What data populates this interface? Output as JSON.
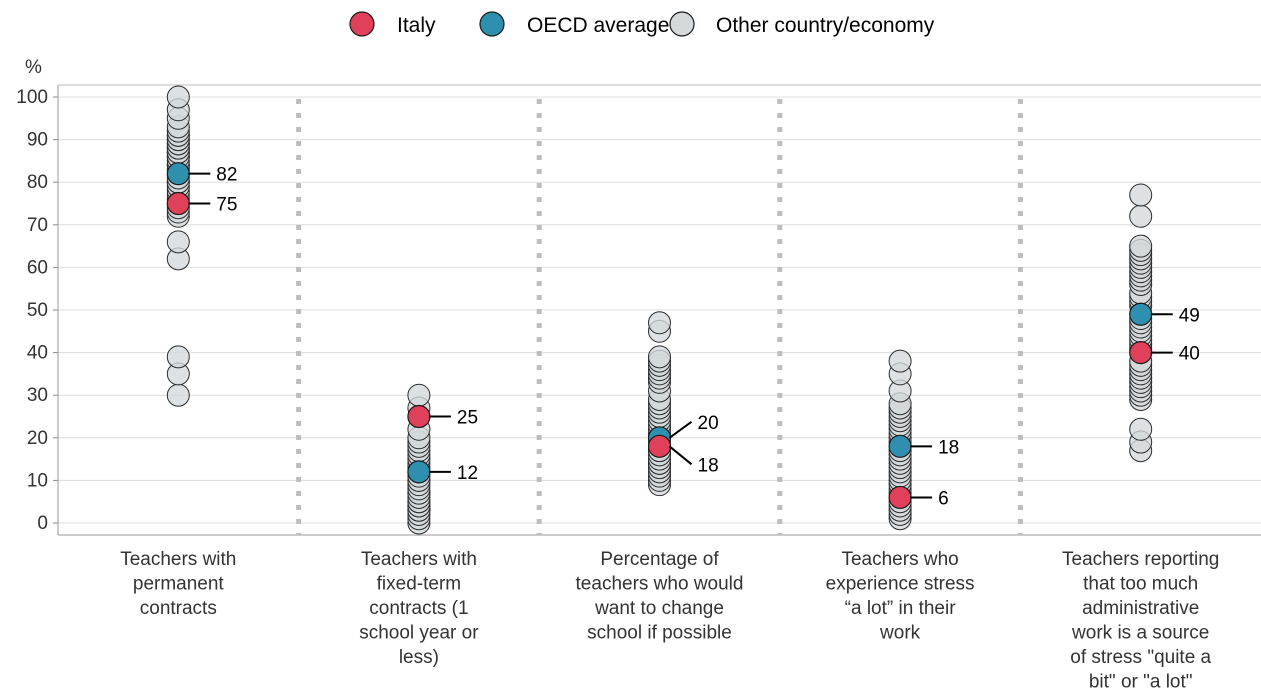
{
  "chart_data": {
    "type": "scatter",
    "title": "",
    "ylabel": "%",
    "ylim": [
      0,
      100
    ],
    "yticks": [
      0,
      10,
      20,
      30,
      40,
      50,
      60,
      70,
      80,
      90,
      100
    ],
    "grid": true,
    "legend_position": "top-center",
    "colors": {
      "italy": "#e0405a",
      "oecd": "#2e8fae",
      "other": "#d4d9db"
    },
    "legend": [
      {
        "key": "italy",
        "label": "Italy"
      },
      {
        "key": "oecd",
        "label": "OECD average"
      },
      {
        "key": "other",
        "label": "Other country/economy"
      }
    ],
    "categories": [
      "Teachers with permanent contracts",
      "Teachers with fixed-term contracts (1 school year or less)",
      "Percentage of teachers who would want to change school if possible",
      "Teachers who experience stress “a lot” in their work",
      "Teachers reporting that too much administrative work is a source of stress \"quite a bit\" or \"a lot\""
    ],
    "category_lines": [
      [
        "Teachers with",
        "permanent",
        "contracts"
      ],
      [
        "Teachers with",
        "fixed-term",
        "contracts (1",
        "school year or",
        "less)"
      ],
      [
        "Percentage of",
        "teachers who would",
        "want to change",
        "school if possible"
      ],
      [
        "Teachers who",
        "experience stress",
        "“a lot” in their",
        "work"
      ],
      [
        "Teachers reporting",
        "that too much",
        "administrative",
        "work is a source",
        "of stress \"quite a",
        "bit\" or \"a lot\""
      ]
    ],
    "series": [
      {
        "key": "other",
        "name": "Other country/economy",
        "values": [
          [
            30,
            35,
            39,
            62,
            66,
            72,
            73,
            74,
            76,
            77,
            78,
            79,
            80,
            80,
            81,
            83,
            84,
            84,
            85,
            86,
            86,
            87,
            87,
            88,
            88,
            89,
            89,
            90,
            90,
            91,
            91,
            92,
            93,
            95,
            97,
            100
          ],
          [
            0,
            1,
            2,
            3,
            3,
            4,
            4,
            5,
            5,
            6,
            7,
            7,
            8,
            9,
            10,
            10,
            11,
            13,
            14,
            15,
            16,
            17,
            18,
            19,
            20,
            22,
            27,
            30
          ],
          [
            9,
            10,
            11,
            12,
            13,
            14,
            14,
            15,
            16,
            17,
            17,
            19,
            21,
            22,
            23,
            24,
            25,
            26,
            27,
            28,
            29,
            31,
            33,
            34,
            35,
            36,
            37,
            38,
            39,
            45,
            47
          ],
          [
            1,
            2,
            3,
            4,
            5,
            7,
            8,
            9,
            10,
            11,
            12,
            13,
            14,
            15,
            16,
            17,
            19,
            20,
            21,
            22,
            23,
            24,
            25,
            26,
            27,
            28,
            31,
            35,
            38
          ],
          [
            17,
            19,
            22,
            29,
            30,
            31,
            32,
            33,
            34,
            35,
            36,
            37,
            38,
            41,
            42,
            43,
            44,
            45,
            46,
            47,
            48,
            51,
            52,
            53,
            54,
            56,
            57,
            58,
            59,
            60,
            61,
            62,
            63,
            64,
            65,
            72,
            77
          ]
        ]
      },
      {
        "key": "oecd",
        "name": "OECD average",
        "values": [
          82,
          12,
          20,
          18,
          49
        ],
        "labels": [
          "82",
          "12",
          "20",
          "18",
          "49"
        ]
      },
      {
        "key": "italy",
        "name": "Italy",
        "values": [
          75,
          25,
          18,
          6,
          40
        ],
        "labels": [
          "75",
          "25",
          "18",
          "6",
          "40"
        ]
      }
    ]
  }
}
